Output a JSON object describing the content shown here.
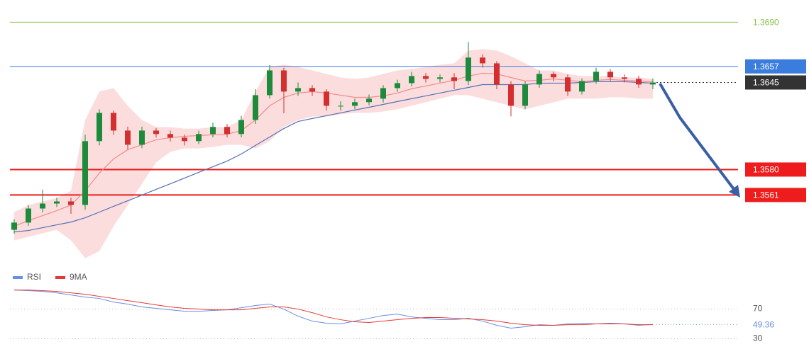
{
  "chart_data": [
    {
      "type": "candlestick",
      "ylim": [
        1.3511,
        1.3696
      ],
      "up_color": "#1e8a3c",
      "down_color": "#d32f2f",
      "open": [
        1.3535,
        1.35404,
        1.35509,
        1.35546,
        1.35562,
        1.35536,
        1.36012,
        1.36223,
        1.36091,
        1.35985,
        1.36091,
        1.36065,
        1.36038,
        1.36012,
        1.36065,
        1.36118,
        1.36065,
        1.3617,
        1.36355,
        1.3654,
        1.36382,
        1.36408,
        1.36382,
        1.36276,
        1.36276,
        1.36303,
        1.36329,
        1.36408,
        1.36445,
        1.36498,
        1.36477,
        1.36488,
        1.36461,
        1.36636,
        1.36593,
        1.36435,
        1.36276,
        1.36435,
        1.36514,
        1.36488,
        1.36382,
        1.36461,
        1.3653,
        1.36488,
        1.36477,
        1.36435
      ],
      "high": [
        1.3543,
        1.35535,
        1.3565,
        1.3559,
        1.3559,
        1.3606,
        1.3625,
        1.3624,
        1.3612,
        1.3612,
        1.3611,
        1.3609,
        1.3606,
        1.3609,
        1.3615,
        1.3614,
        1.362,
        1.364,
        1.3658,
        1.3656,
        1.3645,
        1.3643,
        1.364,
        1.3631,
        1.3633,
        1.3636,
        1.3643,
        1.3647,
        1.3653,
        1.3652,
        1.3651,
        1.3652,
        1.36752,
        1.3666,
        1.3661,
        1.3646,
        1.3646,
        1.3654,
        1.3653,
        1.3651,
        1.3648,
        1.3656,
        1.3655,
        1.3651,
        1.365,
        1.3648
      ],
      "low": [
        1.3532,
        1.3538,
        1.3548,
        1.3552,
        1.3547,
        1.355,
        1.3598,
        1.3606,
        1.3595,
        1.3596,
        1.3604,
        1.3601,
        1.3598,
        1.3599,
        1.3604,
        1.3604,
        1.3604,
        1.3614,
        1.3633,
        1.3622,
        1.3635,
        1.3635,
        1.3624,
        1.3624,
        1.3625,
        1.3628,
        1.363,
        1.3638,
        1.3642,
        1.3645,
        1.3645,
        1.364,
        1.3643,
        1.3656,
        1.364,
        1.36197,
        1.3625,
        1.3641,
        1.3646,
        1.3635,
        1.3636,
        1.3644,
        1.3646,
        1.3645,
        1.3641,
        1.364
      ],
      "close": [
        1.35404,
        1.35509,
        1.35546,
        1.35562,
        1.35536,
        1.36012,
        1.36223,
        1.36091,
        1.35985,
        1.36091,
        1.36065,
        1.36038,
        1.36012,
        1.36065,
        1.36118,
        1.36065,
        1.3617,
        1.36355,
        1.3654,
        1.36382,
        1.36408,
        1.36382,
        1.36276,
        1.36276,
        1.36303,
        1.36329,
        1.36408,
        1.36445,
        1.36498,
        1.36477,
        1.36488,
        1.36461,
        1.36636,
        1.36593,
        1.36435,
        1.36276,
        1.36435,
        1.36514,
        1.36488,
        1.36382,
        1.36461,
        1.3653,
        1.36488,
        1.36477,
        1.36435,
        1.3645
      ],
      "band": {
        "color": "#fad4d4",
        "upper": [
          1.35482,
          1.35535,
          1.35562,
          1.35588,
          1.35641,
          1.3617,
          1.36382,
          1.36408,
          1.36276,
          1.3617,
          1.36117,
          1.36117,
          1.36106,
          1.36106,
          1.36117,
          1.36117,
          1.3617,
          1.36382,
          1.36567,
          1.36583,
          1.36567,
          1.3654,
          1.36514,
          1.36487,
          1.36477,
          1.36487,
          1.36514,
          1.3654,
          1.36551,
          1.36567,
          1.36583,
          1.36593,
          1.36688,
          1.36699,
          1.36688,
          1.36646,
          1.36593,
          1.3654,
          1.3654,
          1.36514,
          1.36498,
          1.36498,
          1.36498,
          1.36487,
          1.36487,
          1.36477
        ],
        "lower": [
          1.35271,
          1.35297,
          1.35324,
          1.3535,
          1.35271,
          1.35138,
          1.35191,
          1.35376,
          1.35535,
          1.35694,
          1.35853,
          1.35932,
          1.35958,
          1.35958,
          1.35969,
          1.35985,
          1.35985,
          1.35958,
          1.36011,
          1.36117,
          1.3617,
          1.36196,
          1.36196,
          1.36212,
          1.36223,
          1.36223,
          1.36233,
          1.36249,
          1.36276,
          1.36302,
          1.36329,
          1.36355,
          1.36355,
          1.36329,
          1.36302,
          1.36276,
          1.36249,
          1.36276,
          1.36302,
          1.36329,
          1.36329,
          1.36329,
          1.36339,
          1.36339,
          1.36329,
          1.36329
        ]
      },
      "overlays": [
        {
          "color": "#f28b8b",
          "values": [
            1.35376,
            1.35419,
            1.35456,
            1.35493,
            1.35535,
            1.35641,
            1.35773,
            1.35879,
            1.35948,
            1.35985,
            1.36022,
            1.36038,
            1.36048,
            1.36054,
            1.36059,
            1.36064,
            1.36091,
            1.3617,
            1.36276,
            1.36339,
            1.36371,
            1.36382,
            1.36371,
            1.36355,
            1.36339,
            1.36339,
            1.3635,
            1.36371,
            1.36403,
            1.36424,
            1.36445,
            1.36466,
            1.36498,
            1.36519,
            1.36514,
            1.36487,
            1.36461,
            1.36466,
            1.36477,
            1.36466,
            1.36456,
            1.36466,
            1.36472,
            1.36466,
            1.36461,
            1.36456
          ]
        },
        {
          "color": "#5570b8",
          "values": [
            1.35334,
            1.35345,
            1.35366,
            1.35387,
            1.35408,
            1.3544,
            1.35482,
            1.35525,
            1.35567,
            1.35609,
            1.35652,
            1.35694,
            1.35736,
            1.35779,
            1.35821,
            1.35863,
            1.35916,
            1.3598,
            1.36043,
            1.36106,
            1.36159,
            1.36181,
            1.36202,
            1.36223,
            1.36244,
            1.36265,
            1.36286,
            1.36308,
            1.36329,
            1.3635,
            1.36371,
            1.36392,
            1.36413,
            1.36434,
            1.36434,
            1.36434,
            1.36434,
            1.36445,
            1.36445,
            1.36445,
            1.3645,
            1.36456,
            1.36456,
            1.36456,
            1.3645,
            1.36445
          ]
        }
      ],
      "levels": [
        {
          "value": 1.369,
          "label": "1.3690",
          "color": "#8bc34a",
          "line": "solid",
          "width": 1,
          "box": false
        },
        {
          "value": 1.3657,
          "color": "#3b7ddd",
          "line": "solid",
          "width": 1,
          "box": true
        },
        {
          "value": 1.3645,
          "color": "#333333",
          "line": "dotted",
          "width": 1,
          "box": true
        },
        {
          "value": 1.358,
          "label": "1.3580",
          "color": "#ee1c1c",
          "line": "solid",
          "width": 2,
          "box": true
        },
        {
          "value": 1.3561,
          "color": "#ee1c1c",
          "line": "solid",
          "width": 2,
          "box": true
        }
      ]
    },
    {
      "type": "line",
      "ylim": [
        20,
        102
      ],
      "yticks": [
        70,
        30
      ],
      "grid": true,
      "series": [
        {
          "name": "RSI",
          "color": "#6b8ee0",
          "values": [
            95.7,
            94.8,
            93.8,
            91.9,
            89.0,
            86.2,
            84.3,
            79.5,
            76.7,
            72.9,
            71.0,
            69.0,
            67.1,
            67.1,
            68.1,
            69.0,
            71.9,
            74.8,
            76.7,
            70.0,
            60.5,
            53.8,
            51.0,
            50.0,
            53.8,
            57.6,
            61.4,
            63.3,
            59.5,
            57.6,
            55.7,
            55.7,
            57.6,
            53.8,
            48.1,
            44.3,
            46.2,
            49.0,
            48.1,
            50.0,
            51.0,
            50.0,
            51.0,
            50.0,
            48.1,
            49.36
          ]
        },
        {
          "name": "9MA",
          "color": "#e53935",
          "values": [
            95.7,
            95.7,
            94.8,
            93.8,
            91.9,
            90.0,
            87.1,
            84.3,
            81.4,
            78.6,
            75.7,
            72.9,
            71.0,
            70.0,
            69.0,
            69.0,
            69.0,
            71.0,
            72.9,
            72.9,
            70.0,
            65.2,
            59.5,
            55.7,
            52.9,
            51.9,
            53.8,
            55.7,
            57.6,
            58.6,
            58.6,
            57.6,
            56.7,
            55.7,
            53.8,
            51.0,
            49.0,
            48.1,
            48.1,
            49.0,
            49.0,
            50.0,
            50.0,
            50.0,
            49.0,
            49.0
          ]
        }
      ]
    }
  ]
}
